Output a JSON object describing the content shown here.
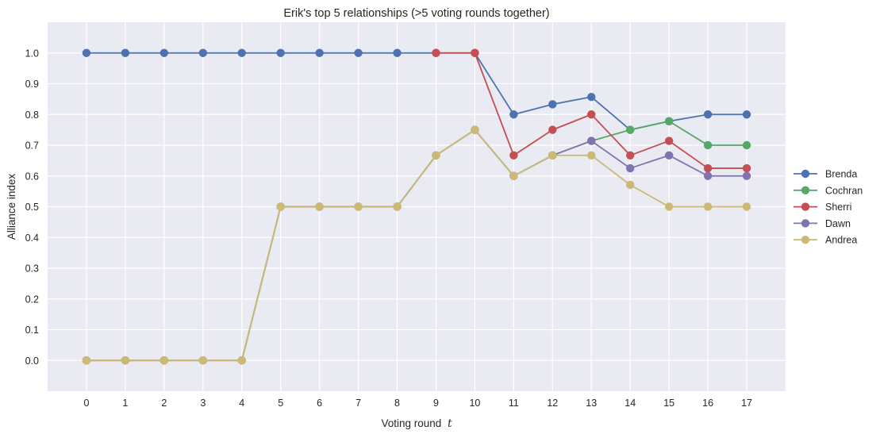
{
  "chart_data": {
    "type": "line",
    "title": "Erik's top 5 relationships (>5 voting rounds together)",
    "xlabel": "Voting round",
    "xlabel_var": "t",
    "ylabel": "Alliance index",
    "x": [
      0,
      1,
      2,
      3,
      4,
      5,
      6,
      7,
      8,
      9,
      10,
      11,
      12,
      13,
      14,
      15,
      16,
      17
    ],
    "x_ticks": [
      "0",
      "1",
      "2",
      "3",
      "4",
      "5",
      "6",
      "7",
      "8",
      "9",
      "10",
      "11",
      "12",
      "13",
      "14",
      "15",
      "16",
      "17"
    ],
    "xlim": [
      -1,
      18
    ],
    "ylim": [
      -0.1,
      1.1
    ],
    "y_ticks": [
      "0.0",
      "0.1",
      "0.2",
      "0.3",
      "0.4",
      "0.5",
      "0.6",
      "0.7",
      "0.8",
      "0.9",
      "1.0"
    ],
    "grid": true,
    "legend_position": "right",
    "series": [
      {
        "name": "Brenda",
        "color": "#4c72b0",
        "x": [
          0,
          1,
          2,
          3,
          4,
          5,
          6,
          7,
          8,
          9,
          10,
          11,
          12,
          13,
          14,
          15,
          16,
          17
        ],
        "values": [
          1.0,
          1.0,
          1.0,
          1.0,
          1.0,
          1.0,
          1.0,
          1.0,
          1.0,
          1.0,
          1.0,
          0.8,
          0.833,
          0.857,
          0.75,
          0.778,
          0.8,
          0.8
        ]
      },
      {
        "name": "Cochran",
        "color": "#55a868",
        "x": [
          0,
          1,
          2,
          3,
          4,
          5,
          6,
          7,
          8,
          9,
          10,
          11,
          12,
          13,
          14,
          15,
          16,
          17
        ],
        "values": [
          0.0,
          0.0,
          0.0,
          0.0,
          0.0,
          0.5,
          0.5,
          0.5,
          0.5,
          0.667,
          0.75,
          0.6,
          0.667,
          0.714,
          0.75,
          0.778,
          0.7,
          0.7
        ]
      },
      {
        "name": "Sherri",
        "color": "#c44e52",
        "x": [
          9,
          10,
          11,
          12,
          13,
          14,
          15,
          16,
          17
        ],
        "values": [
          1.0,
          1.0,
          0.667,
          0.75,
          0.8,
          0.667,
          0.714,
          0.625,
          0.625
        ]
      },
      {
        "name": "Dawn",
        "color": "#8172b2",
        "x": [
          0,
          1,
          2,
          3,
          4,
          5,
          6,
          7,
          8,
          9,
          10,
          11,
          12,
          13,
          14,
          15,
          16,
          17
        ],
        "values": [
          0.0,
          0.0,
          0.0,
          0.0,
          0.0,
          0.5,
          0.5,
          0.5,
          0.5,
          0.667,
          0.75,
          0.6,
          0.667,
          0.714,
          0.625,
          0.667,
          0.6,
          0.6
        ]
      },
      {
        "name": "Andrea",
        "color": "#ccb974",
        "x": [
          0,
          1,
          2,
          3,
          4,
          5,
          6,
          7,
          8,
          9,
          10,
          11,
          12,
          13,
          14,
          15,
          16,
          17
        ],
        "values": [
          0.0,
          0.0,
          0.0,
          0.0,
          0.0,
          0.5,
          0.5,
          0.5,
          0.5,
          0.667,
          0.75,
          0.6,
          0.667,
          0.667,
          0.571,
          0.5,
          0.5,
          0.5
        ]
      }
    ],
    "style": {
      "plot_background": "#eaeaf2",
      "grid_color": "#ffffff"
    }
  }
}
